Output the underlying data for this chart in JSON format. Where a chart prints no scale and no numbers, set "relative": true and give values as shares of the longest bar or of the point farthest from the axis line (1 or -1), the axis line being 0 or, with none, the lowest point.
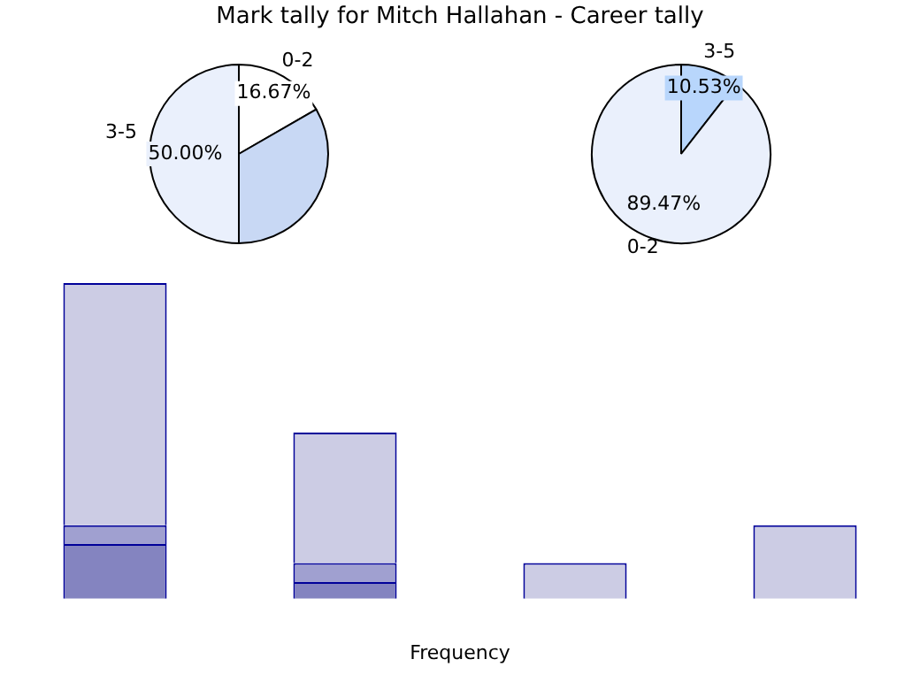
{
  "chart_data": [
    {
      "type": "pie",
      "title": "Mark tally for Mitch Hallahan - Career tally",
      "categories": [
        "0-2",
        null,
        "3-5"
      ],
      "values": [
        16.67,
        33.33,
        50
      ],
      "colors": [
        "#ffffff",
        "#c8d8f4",
        "#eaf0fc"
      ],
      "value_labels": [
        "16.67%",
        null,
        "50.00%"
      ],
      "legend": false
    },
    {
      "type": "pie",
      "categories": [
        "3-5",
        "0-2"
      ],
      "values": [
        10.53,
        89.47
      ],
      "colors": [
        "#b8d6fc",
        "#eaf0fc"
      ],
      "value_labels": [
        "10.53%",
        "89.47%"
      ],
      "legend": false
    },
    {
      "type": "bar",
      "xlabel": "Frequency",
      "categories": [
        null,
        null,
        null,
        null
      ],
      "stacked": true,
      "relative": true,
      "grid": false,
      "legend": false,
      "series": [
        {
          "color": "#8484c0",
          "values": [
            0.173,
            0.053,
            0,
            0
          ]
        },
        {
          "color": "#a0a0d0",
          "values": [
            0.06,
            0.06,
            0,
            0
          ]
        },
        {
          "color": "#ccccE4",
          "values": [
            0.767,
            0.413,
            0.113,
            0.233
          ]
        }
      ]
    }
  ]
}
